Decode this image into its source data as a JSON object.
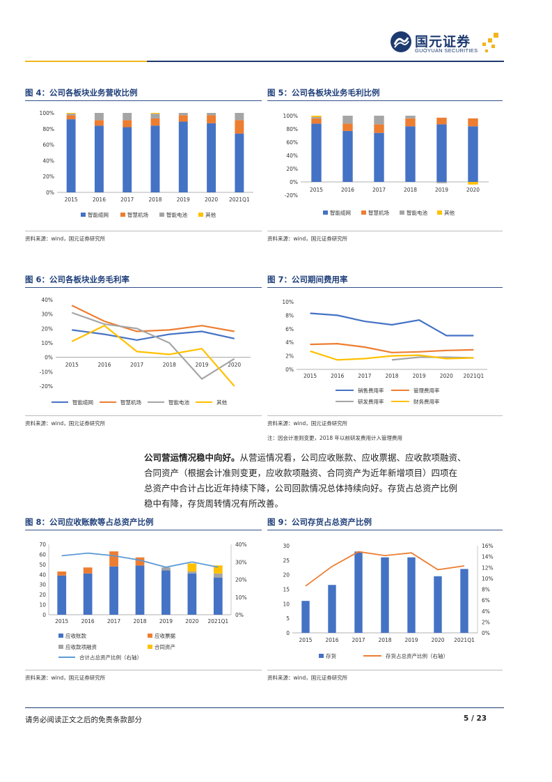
{
  "header": {
    "logo_cn": "国元证券",
    "logo_en": "GUOYUAN SECURITIES"
  },
  "colors": {
    "blue": "#4472c4",
    "orange": "#ed7d31",
    "gray": "#a5a5a5",
    "yellow": "#ffc000",
    "lightblue": "#5b9bd5",
    "title": "#1f3f7a"
  },
  "fig4": {
    "title": "图 4：公司各板块业务营收比例",
    "source": "资料来源：wind，国元证券研究所",
    "chart_data": {
      "type": "bar",
      "stacked": true,
      "categories": [
        "2015",
        "2016",
        "2017",
        "2018",
        "2019",
        "2020",
        "2021Q1"
      ],
      "y_ticks": [
        "0%",
        "20%",
        "40%",
        "60%",
        "80%",
        "100%"
      ],
      "ylim": [
        0,
        100
      ],
      "series": [
        {
          "name": "智能缆网",
          "color": "#4472c4",
          "values": [
            92,
            84,
            82,
            84,
            89,
            87,
            74
          ]
        },
        {
          "name": "智慧机场",
          "color": "#ed7d31",
          "values": [
            5,
            7,
            9,
            9,
            8,
            10,
            17
          ]
        },
        {
          "name": "智能电池",
          "color": "#a5a5a5",
          "values": [
            2,
            9,
            9,
            6,
            3,
            3,
            9
          ]
        },
        {
          "name": "其他",
          "color": "#ffc000",
          "values": [
            1,
            0,
            0,
            1,
            0,
            0,
            0
          ]
        }
      ]
    }
  },
  "fig5": {
    "title": "图 5：公司各板块业务毛利比例",
    "source": "资料来源：wind，国元证券研究所",
    "chart_data": {
      "type": "bar",
      "stacked": true,
      "categories": [
        "2015",
        "2016",
        "2017",
        "2018",
        "2019",
        "2020"
      ],
      "y_ticks": [
        "-20%",
        "0%",
        "20%",
        "40%",
        "60%",
        "80%",
        "100%"
      ],
      "ylim": [
        -20,
        100
      ],
      "series": [
        {
          "name": "智能缆网",
          "color": "#4472c4",
          "values": [
            88,
            77,
            74,
            84,
            87,
            84
          ]
        },
        {
          "name": "智慧机场",
          "color": "#ed7d31",
          "values": [
            8,
            11,
            13,
            12,
            10,
            12
          ]
        },
        {
          "name": "智能电池",
          "color": "#a5a5a5",
          "values": [
            2,
            12,
            13,
            4,
            -2,
            0
          ]
        },
        {
          "name": "其他",
          "color": "#ffc000",
          "values": [
            2,
            0,
            0,
            0,
            0,
            -4
          ]
        }
      ]
    }
  },
  "fig6": {
    "title": "图 6：公司各板块业务毛利率",
    "source": "资料来源：wind，国元证券研究所",
    "chart_data": {
      "type": "line",
      "categories": [
        "2015",
        "2016",
        "2017",
        "2018",
        "2019",
        "2020"
      ],
      "y_ticks": [
        "-20%",
        "-10%",
        "0%",
        "10%",
        "20%",
        "30%",
        "40%"
      ],
      "ylim": [
        -20,
        40
      ],
      "series": [
        {
          "name": "智能缆网",
          "color": "#4472c4",
          "values": [
            19,
            16,
            12,
            16,
            18,
            13
          ]
        },
        {
          "name": "智慧机场",
          "color": "#ed7d31",
          "values": [
            36,
            25,
            18,
            19,
            22,
            18
          ]
        },
        {
          "name": "智能电池",
          "color": "#a5a5a5",
          "values": [
            31,
            23,
            20,
            10,
            -15,
            -1
          ]
        },
        {
          "name": "其他",
          "color": "#ffc000",
          "values": [
            11,
            22,
            4,
            2,
            6,
            -20
          ]
        }
      ]
    }
  },
  "fig7": {
    "title": "图 7：公司期间费用率",
    "source": "资料来源：wind，国元证券研究所",
    "note": "注：因会计准则变更，2018 年以前研发费用计入管理费用",
    "chart_data": {
      "type": "line",
      "categories": [
        "2015",
        "2016",
        "2017",
        "2018",
        "2019",
        "2020",
        "2021Q1"
      ],
      "y_ticks": [
        "0%",
        "2%",
        "4%",
        "6%",
        "8%",
        "10%"
      ],
      "ylim": [
        0,
        10
      ],
      "series": [
        {
          "name": "销售费用率",
          "color": "#4472c4",
          "values": [
            8.3,
            8.0,
            7.1,
            6.6,
            7.3,
            5.0,
            5.0
          ]
        },
        {
          "name": "管理费用率",
          "color": "#ed7d31",
          "values": [
            3.7,
            3.8,
            3.3,
            2.5,
            2.6,
            2.8,
            2.9
          ]
        },
        {
          "name": "研发费用率",
          "color": "#a5a5a5",
          "values": [
            null,
            null,
            null,
            1.4,
            1.8,
            1.8,
            1.7
          ]
        },
        {
          "name": "财务费用率",
          "color": "#ffc000",
          "values": [
            2.7,
            1.4,
            1.6,
            2.0,
            2.1,
            1.6,
            1.7
          ]
        }
      ]
    }
  },
  "paragraph": {
    "lead": "公司营运情况稳中向好。",
    "line1": "从营运情况看，公司应收账款、应收票据、应收款项融资、",
    "line2": "合同资产（根据会计准则变更，应收款项融资、合同资产为近年新增项目）四项在",
    "line3": "总资产中合计占比近年持续下降，公司回款情况总体持续向好。存货占总资产比例",
    "line4": "稳中有降，存货周转情况有所改善。"
  },
  "fig8": {
    "title": "图 8：公司应收账款等占总资产比例",
    "source": "资料来源：wind，国元证券研究所",
    "chart_data": {
      "type": "bar",
      "stacked": true,
      "categories": [
        "2015",
        "2016",
        "2017",
        "2018",
        "2019",
        "2020",
        "2021Q1"
      ],
      "y_ticks": [
        "0",
        "10",
        "20",
        "30",
        "40",
        "50",
        "60",
        "70"
      ],
      "ylim": [
        0,
        70
      ],
      "y2_ticks": [
        "0%",
        "10%",
        "20%",
        "30%",
        "40%"
      ],
      "y2lim": [
        0,
        40
      ],
      "series": [
        {
          "name": "应收账款",
          "color": "#4472c4",
          "values": [
            39,
            41,
            48,
            49,
            44,
            41,
            37
          ]
        },
        {
          "name": "应收票据",
          "color": "#ed7d31",
          "values": [
            4,
            6,
            15,
            8,
            0,
            0,
            0
          ]
        },
        {
          "name": "应收款项融资",
          "color": "#a5a5a5",
          "values": [
            0,
            0,
            0,
            0,
            3,
            2,
            4
          ]
        },
        {
          "name": "合同资产",
          "color": "#ffc000",
          "values": [
            0,
            0,
            0,
            0,
            0,
            8,
            8
          ]
        }
      ],
      "line_series": {
        "name": "合计占总资产比例（右轴）",
        "color": "#5b9bd5",
        "values": [
          33.5,
          35,
          33.5,
          31,
          27,
          30,
          27
        ]
      }
    }
  },
  "fig9": {
    "title": "图 9：公司存货占总资产比例",
    "source": "资料来源：wind，国元证券研究所",
    "chart_data": {
      "type": "bar",
      "categories": [
        "2015",
        "2016",
        "2017",
        "2018",
        "2019",
        "2020",
        "2021Q1"
      ],
      "y_ticks": [
        "0",
        "5",
        "10",
        "15",
        "20",
        "25",
        "30"
      ],
      "ylim": [
        0,
        30
      ],
      "y2_ticks": [
        "0%",
        "2%",
        "4%",
        "6%",
        "8%",
        "10%",
        "12%",
        "14%",
        "16%"
      ],
      "y2lim": [
        0,
        16
      ],
      "series": [
        {
          "name": "存货",
          "color": "#4472c4",
          "values": [
            11,
            16.5,
            28,
            26,
            26,
            19.5,
            22
          ]
        }
      ],
      "line_series": {
        "name": "存货占总资产比例（右轴）",
        "color": "#ed7d31",
        "values": [
          8.6,
          12.2,
          14.9,
          14.2,
          14.7,
          11.6,
          12.3
        ]
      }
    }
  },
  "footer": {
    "disclaimer": "请务必阅读正文之后的免责条款部分",
    "page": "5 / 23"
  }
}
